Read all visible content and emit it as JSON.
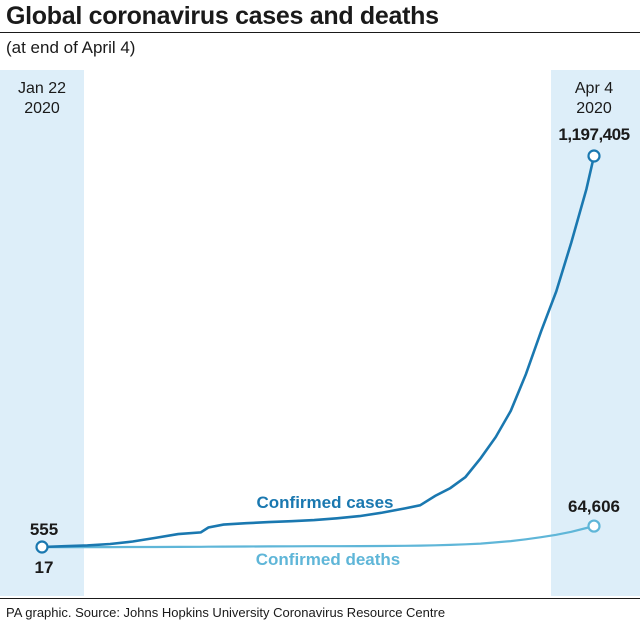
{
  "title": "Global coronavirus cases and deaths",
  "subtitle": "(at end of April 4)",
  "source": "PA graphic. Source: Johns Hopkins University Coronavirus Resource Centre",
  "colors": {
    "cases": "#1a78b0",
    "deaths": "#5fb6d8",
    "band": "#ddeef9",
    "text": "#1a1a1a"
  },
  "chart_data": {
    "type": "line",
    "x_start": {
      "month_day": "Jan 22",
      "year": "2020"
    },
    "x_end": {
      "month_day": "Apr 4",
      "year": "2020"
    },
    "x": [
      "2020-01-22",
      "2020-01-25",
      "2020-01-28",
      "2020-01-31",
      "2020-02-03",
      "2020-02-06",
      "2020-02-09",
      "2020-02-12",
      "2020-02-13",
      "2020-02-15",
      "2020-02-18",
      "2020-02-21",
      "2020-02-24",
      "2020-02-27",
      "2020-03-01",
      "2020-03-04",
      "2020-03-07",
      "2020-03-10",
      "2020-03-12",
      "2020-03-14",
      "2020-03-16",
      "2020-03-18",
      "2020-03-20",
      "2020-03-22",
      "2020-03-24",
      "2020-03-26",
      "2020-03-28",
      "2020-03-30",
      "2020-04-01",
      "2020-04-03",
      "2020-04-04"
    ],
    "series": [
      {
        "name": "Confirmed cases",
        "values": [
          555,
          2900,
          5600,
          9800,
          17400,
          28300,
          40000,
          45200,
          60300,
          69000,
          73300,
          76800,
          79600,
          83000,
          88400,
          95100,
          105800,
          118600,
          128300,
          157000,
          181000,
          214900,
          272200,
          337000,
          417500,
          529600,
          660700,
          782400,
          932600,
          1095900,
          1197405
        ],
        "labels": {
          "start": "555",
          "end": "1,197,405",
          "series_label": "Confirmed cases"
        }
      },
      {
        "name": "Confirmed deaths",
        "values": [
          17,
          56,
          132,
          213,
          427,
          565,
          910,
          1118,
          1370,
          1668,
          2009,
          2359,
          2708,
          2872,
          3000,
          3256,
          3500,
          4260,
          4720,
          5800,
          7100,
          8800,
          11000,
          14600,
          18600,
          24000,
          30600,
          38000,
          47000,
          58800,
          64606
        ],
        "labels": {
          "start": "17",
          "end": "64,606",
          "series_label": "Confirmed deaths"
        }
      }
    ],
    "ylim": [
      0,
      1200000
    ]
  }
}
